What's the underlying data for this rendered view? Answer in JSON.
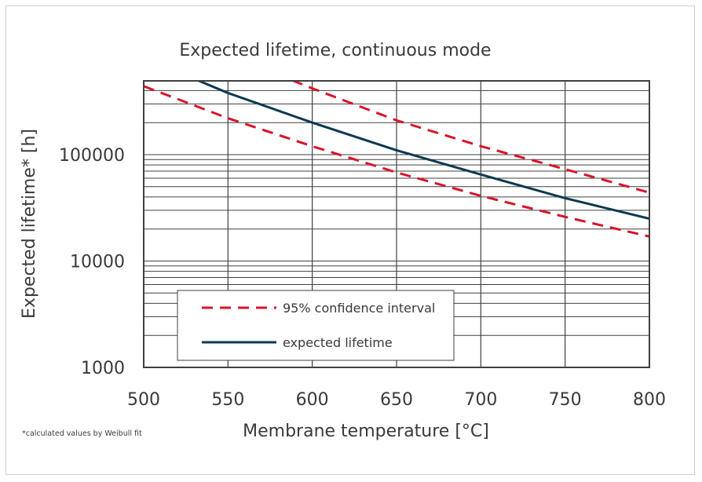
{
  "chart_data": {
    "type": "line",
    "title": "Expected lifetime, continuous mode",
    "xlabel": "Membrane temperature [°C]",
    "ylabel": "Expected lifetime* [h]",
    "footnote": "*calculated values by Weibull fit",
    "xlim": [
      500,
      800
    ],
    "ylim": [
      1000,
      500000
    ],
    "yscale": "log",
    "x_ticks": [
      500,
      550,
      600,
      650,
      700,
      750,
      800
    ],
    "y_ticks": [
      1000,
      10000,
      100000
    ],
    "x_tick_labels": [
      "500",
      "550",
      "600",
      "650",
      "700",
      "750",
      "800"
    ],
    "y_tick_labels": [
      "1000",
      "10000",
      "100000"
    ],
    "grid": true,
    "legend_position": "bottom-left",
    "series": [
      {
        "name": "95% confidence interval",
        "style": "dashed",
        "color": "#d8142a",
        "x": [
          588,
          600,
          650,
          700,
          750,
          800
        ],
        "y": [
          500000,
          420000,
          210000,
          120000,
          73000,
          44000
        ]
      },
      {
        "name": "95% confidence interval (lower)",
        "style": "dashed",
        "color": "#d8142a",
        "x": [
          500,
          550,
          600,
          650,
          700,
          750,
          800
        ],
        "y": [
          440000,
          220000,
          120000,
          68000,
          41000,
          26000,
          17000
        ]
      },
      {
        "name": "expected lifetime",
        "style": "solid",
        "color": "#0d3a52",
        "x": [
          532,
          550,
          600,
          650,
          700,
          750,
          800
        ],
        "y": [
          500000,
          380000,
          200000,
          110000,
          65000,
          39000,
          25000
        ]
      }
    ],
    "legend": [
      {
        "label": "95% confidence interval",
        "style": "dashed",
        "color": "#d8142a"
      },
      {
        "label": "expected lifetime",
        "style": "solid",
        "color": "#0d3a52"
      }
    ]
  }
}
